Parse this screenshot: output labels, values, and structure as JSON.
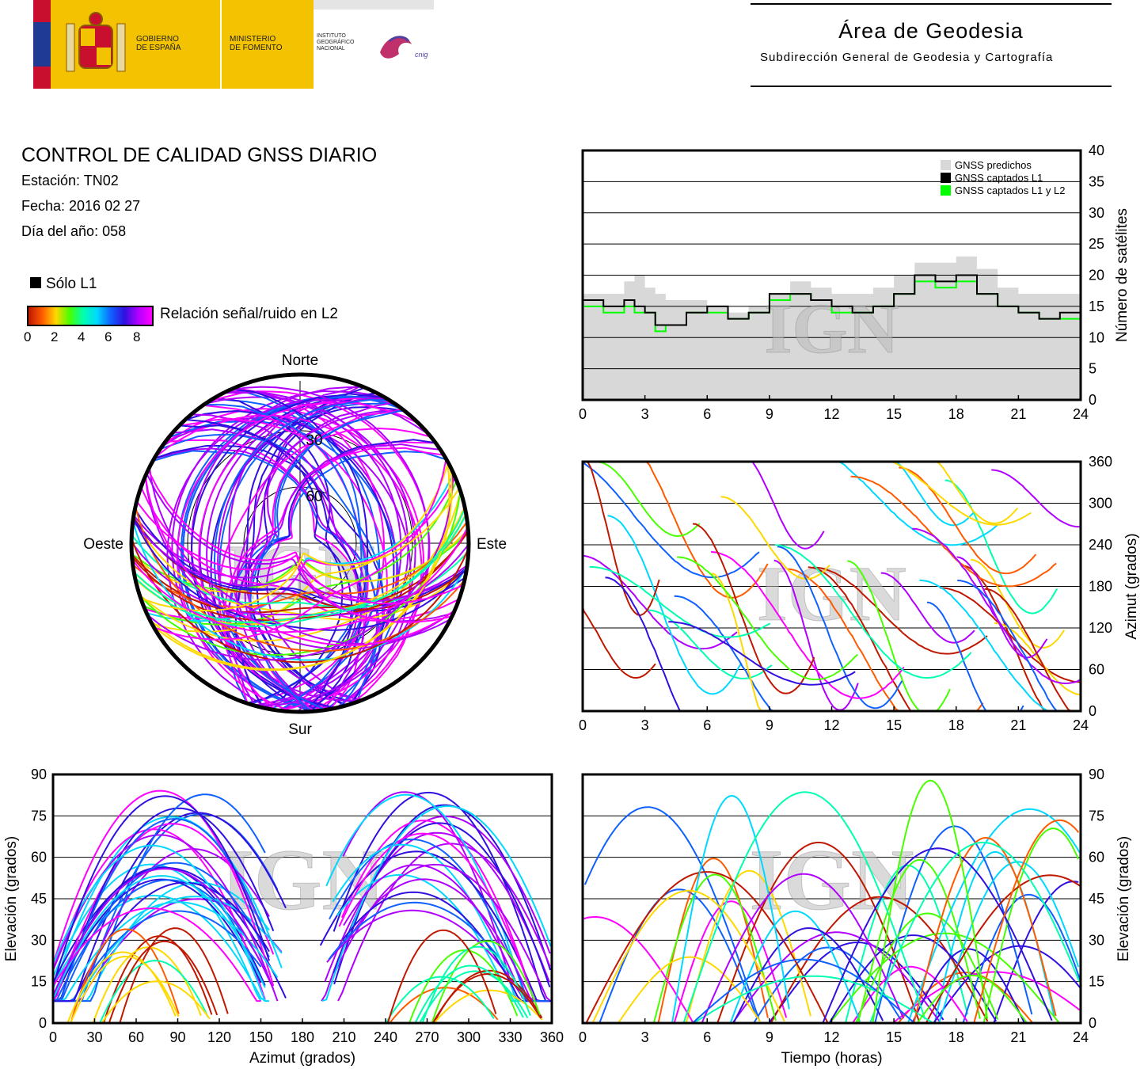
{
  "header": {
    "gov_label": "GOBIERNO\nDE ESPAÑA",
    "ministry_label": "MINISTERIO\nDE FOMENTO",
    "institute_label": "INSTITUTO\nGEOGRÁFICO\nNACIONAL",
    "cnig_label": "cnig",
    "area_title": "Área de Geodesia",
    "area_subtitle": "Subdirección General de Geodesia y Cartografía"
  },
  "report": {
    "title": "CONTROL DE CALIDAD GNSS DIARIO",
    "station": "Estación: TN02",
    "date": "Fecha: 2016 02 27",
    "doy": "Día del año: 058"
  },
  "legend": {
    "only_l1": "Sólo L1",
    "snr_label": "Relación señal/ruido en L2",
    "ticks": [
      "0",
      "2",
      "4",
      "6",
      "8"
    ],
    "colors": [
      "#c01800",
      "#ff5a00",
      "#ffd800",
      "#48ff00",
      "#00ffb0",
      "#00d8ff",
      "#1060ff",
      "#3010e0",
      "#b000ff",
      "#ff00ff"
    ]
  },
  "watermark": "IGN",
  "chart_data": [
    {
      "type": "area",
      "name": "satellites",
      "ylabel": "Número de satélites",
      "xlim": [
        0,
        24
      ],
      "ylim": [
        0,
        40
      ],
      "xticks": [
        "0",
        "3",
        "6",
        "9",
        "12",
        "15",
        "18",
        "21",
        "24"
      ],
      "yticks": [
        "0",
        "5",
        "10",
        "15",
        "20",
        "25",
        "30",
        "35",
        "40"
      ],
      "grid": true,
      "legend_position": "top-right",
      "series": [
        {
          "name": "GNSS predichos",
          "color": "#d8d8d8",
          "x": [
            0,
            1,
            2,
            2.5,
            3,
            3.5,
            4,
            5,
            6,
            7,
            8,
            9,
            10,
            11,
            12,
            13,
            14,
            15,
            16,
            17,
            18,
            19,
            20,
            21,
            22,
            23,
            24
          ],
          "y": [
            17,
            17,
            19,
            20,
            18,
            17,
            16,
            16,
            15,
            14,
            15,
            17,
            19,
            18,
            17,
            17,
            18,
            20,
            22,
            22,
            23,
            21,
            18,
            17,
            17,
            17,
            17
          ]
        },
        {
          "name": "GNSS captados L1",
          "color": "#000000",
          "x": [
            0,
            1,
            2,
            2.5,
            3,
            3.5,
            4,
            5,
            6,
            7,
            8,
            9,
            10,
            11,
            12,
            13,
            14,
            15,
            16,
            17,
            18,
            19,
            20,
            21,
            22,
            23,
            24
          ],
          "y": [
            16,
            15,
            16,
            15,
            14,
            12,
            12,
            14,
            15,
            13,
            14,
            17,
            17,
            16,
            15,
            14,
            15,
            17,
            20,
            19,
            20,
            17,
            15,
            14,
            13,
            14,
            16
          ]
        },
        {
          "name": "GNSS captados L1 y L2",
          "color": "#00ff00",
          "x": [
            0,
            1,
            2,
            2.5,
            3,
            3.5,
            4,
            5,
            6,
            7,
            8,
            9,
            10,
            11,
            12,
            13,
            14,
            15,
            16,
            17,
            18,
            19,
            20,
            21,
            22,
            23,
            24
          ],
          "y": [
            15,
            14,
            15,
            14,
            14,
            11,
            12,
            14,
            14,
            13,
            14,
            16,
            17,
            16,
            14,
            14,
            15,
            17,
            19,
            18,
            19,
            17,
            15,
            14,
            13,
            13,
            15
          ]
        }
      ]
    },
    {
      "type": "scatter",
      "name": "polar-sky",
      "directions": {
        "north": "Norte",
        "south": "Sur",
        "east": "Este",
        "west": "Oeste"
      },
      "ring_labels": [
        "30",
        "60"
      ]
    },
    {
      "type": "line",
      "name": "azimuth-vs-time",
      "ylabel": "Azimut (grados)",
      "xlim": [
        0,
        24
      ],
      "ylim": [
        0,
        360
      ],
      "xticks": [
        "0",
        "3",
        "6",
        "9",
        "12",
        "15",
        "18",
        "21",
        "24"
      ],
      "yticks": [
        "0",
        "60",
        "120",
        "180",
        "240",
        "300",
        "360"
      ],
      "grid": true
    },
    {
      "type": "line",
      "name": "elevation-vs-azimuth",
      "xlabel": "Azimut (grados)",
      "ylabel": "Elevación (grados)",
      "xlim": [
        0,
        360
      ],
      "ylim": [
        0,
        90
      ],
      "xticks": [
        "0",
        "30",
        "60",
        "90",
        "120",
        "150",
        "180",
        "210",
        "240",
        "270",
        "300",
        "330",
        "360"
      ],
      "yticks": [
        "0",
        "15",
        "30",
        "45",
        "60",
        "75",
        "90"
      ],
      "grid": true
    },
    {
      "type": "line",
      "name": "elevation-vs-time",
      "xlabel": "Tiempo (horas)",
      "ylabel": "Elevación (grados)",
      "xlim": [
        0,
        24
      ],
      "ylim": [
        0,
        90
      ],
      "xticks": [
        "0",
        "3",
        "6",
        "9",
        "12",
        "15",
        "18",
        "21",
        "24"
      ],
      "yticks": [
        "0",
        "15",
        "30",
        "45",
        "60",
        "75",
        "90"
      ],
      "grid": true
    }
  ]
}
